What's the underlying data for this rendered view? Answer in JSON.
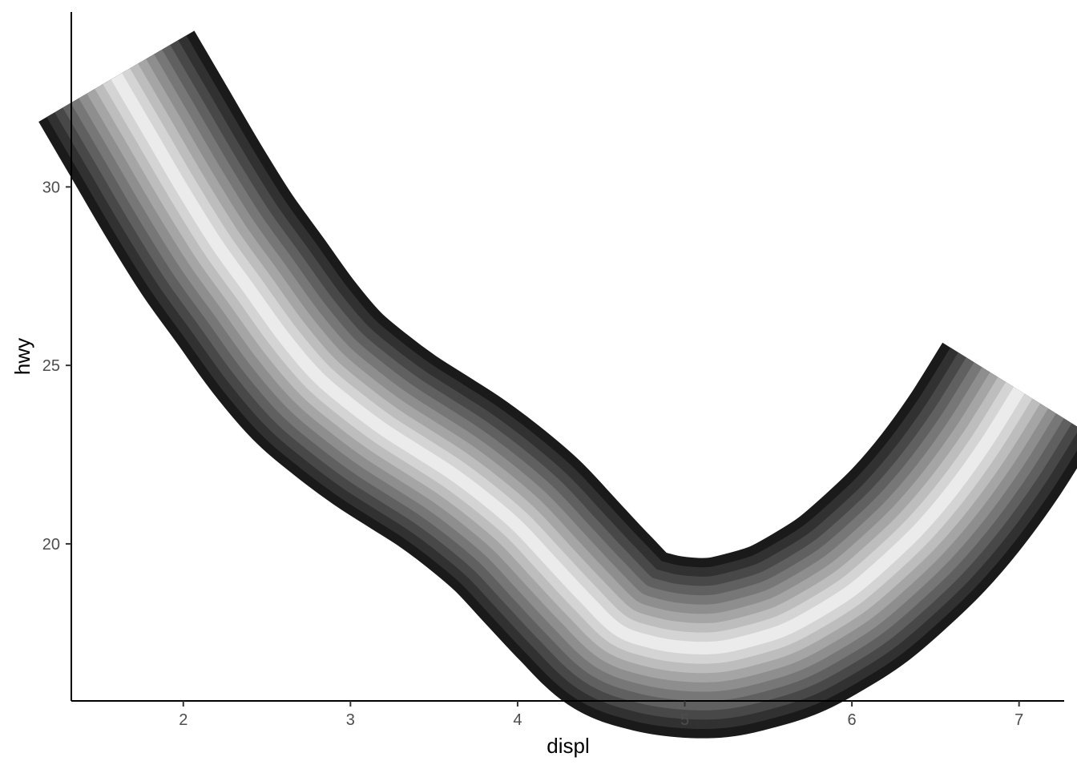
{
  "chart_data": {
    "type": "line",
    "title": "",
    "xlabel": "displ",
    "ylabel": "hwy",
    "xlim": [
      1.33,
      7.27
    ],
    "ylim": [
      15.6,
      34.9
    ],
    "x_ticks": [
      {
        "value": 2,
        "label": "2"
      },
      {
        "value": 3,
        "label": "3"
      },
      {
        "value": 4,
        "label": "4"
      },
      {
        "value": 5,
        "label": "5"
      },
      {
        "value": 6,
        "label": "6"
      },
      {
        "value": 7,
        "label": "7"
      }
    ],
    "y_ticks": [
      {
        "value": 20,
        "label": "20"
      },
      {
        "value": 25,
        "label": "25"
      },
      {
        "value": 30,
        "label": "30"
      }
    ],
    "grid": false,
    "legend": "none",
    "series": [
      {
        "x": [
          1.6,
          1.8,
          2.0,
          2.2,
          2.4,
          2.6,
          2.8,
          3.0,
          3.2,
          3.4,
          3.6,
          3.8,
          4.0,
          4.2,
          4.4,
          4.6,
          4.8,
          5.0,
          5.2,
          5.4,
          5.6,
          5.8,
          6.0,
          6.2,
          6.4,
          6.6,
          6.8,
          7.0
        ],
        "y": [
          33.1,
          31.5,
          29.9,
          28.4,
          27.1,
          25.8,
          24.7,
          23.9,
          23.2,
          22.6,
          22.0,
          21.3,
          20.5,
          19.5,
          18.5,
          17.6,
          17.25,
          17.1,
          17.1,
          17.3,
          17.6,
          18.1,
          18.7,
          19.5,
          20.4,
          21.5,
          22.8,
          24.3
        ]
      }
    ],
    "stroke": {
      "width_y_units": 2.15,
      "gradient": "dark edges (#1a1a1a) to light center (#ebebeb), grayscale bands"
    }
  }
}
